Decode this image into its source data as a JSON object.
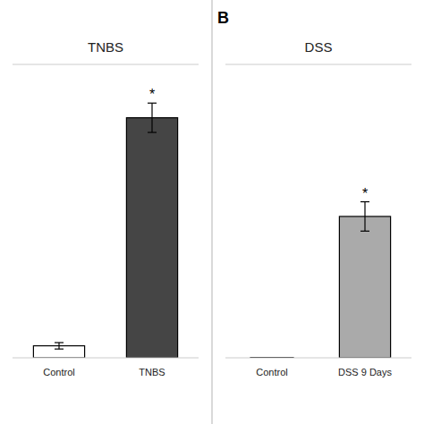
{
  "chart_data": [
    {
      "type": "bar",
      "title": "TNBS",
      "categories": [
        "Control",
        "TNBS"
      ],
      "values": [
        0.45,
        9.0
      ],
      "errors": [
        0.12,
        0.55
      ],
      "colors": [
        "#ffffff",
        "#454545"
      ],
      "ylim": [
        0,
        11
      ],
      "tick_labels": "x",
      "annotations": [
        {
          "text": "*",
          "category": "TNBS"
        }
      ]
    },
    {
      "type": "bar",
      "title": "DSS",
      "categories": [
        "Control",
        "DSS 9 Days"
      ],
      "values": [
        0.0,
        5.3
      ],
      "errors": [
        0.0,
        0.55
      ],
      "colors": [
        "#ffffff",
        "#aaaaaa"
      ],
      "ylim": [
        0,
        11
      ],
      "tick_labels": "x",
      "annotations": [
        {
          "text": "*",
          "category": "DSS 9 Days"
        },
        {
          "text": "B"
        }
      ]
    }
  ]
}
